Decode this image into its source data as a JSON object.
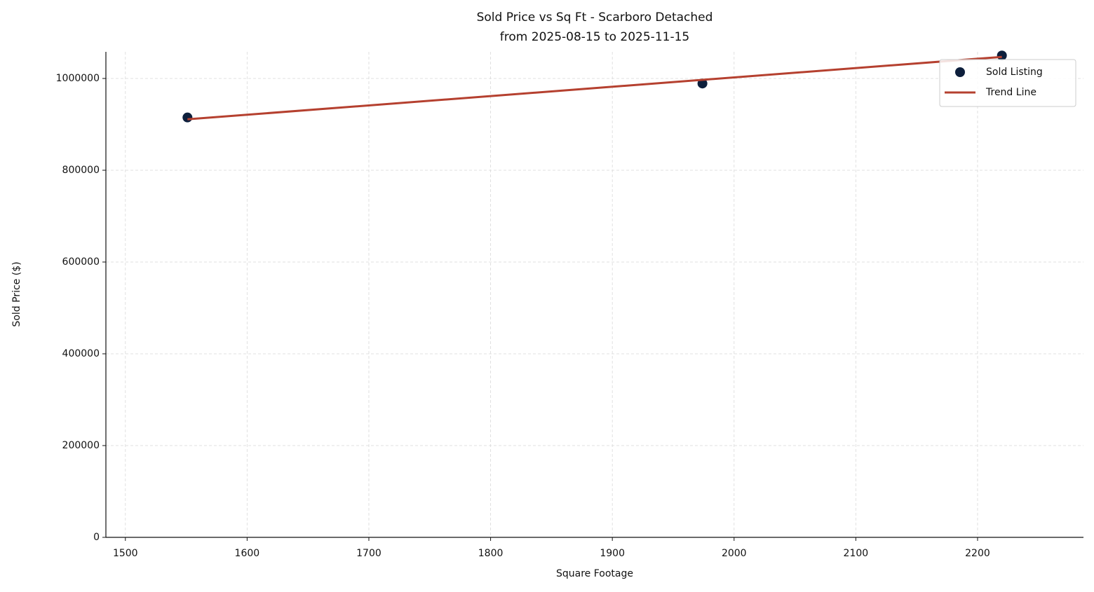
{
  "chart_data": {
    "type": "scatter",
    "title": "Sold Price vs Sq Ft - Scarboro Detached",
    "subtitle": "from 2025-08-15 to 2025-11-15",
    "x_label": "Square Footage",
    "y_label": "Sold Price ($)",
    "xlim": [
      1484,
      2287
    ],
    "ylim": [
      0,
      1058000
    ],
    "xticks": [
      1500,
      1600,
      1700,
      1800,
      1900,
      2000,
      2100,
      2200
    ],
    "yticks": [
      0,
      200000,
      400000,
      600000,
      800000,
      1000000
    ],
    "grid": true,
    "legend": "upper right",
    "series": [
      {
        "name": "Sold Listing",
        "type": "scatter",
        "color": "#0d1f3c",
        "x": [
          1551,
          1974,
          2220
        ],
        "values": [
          915000,
          989000,
          1050000
        ]
      },
      {
        "name": "Trend Line",
        "type": "line",
        "color": "#b5402f",
        "x": [
          1551,
          2220
        ],
        "values": [
          911000,
          1047000
        ]
      }
    ]
  }
}
